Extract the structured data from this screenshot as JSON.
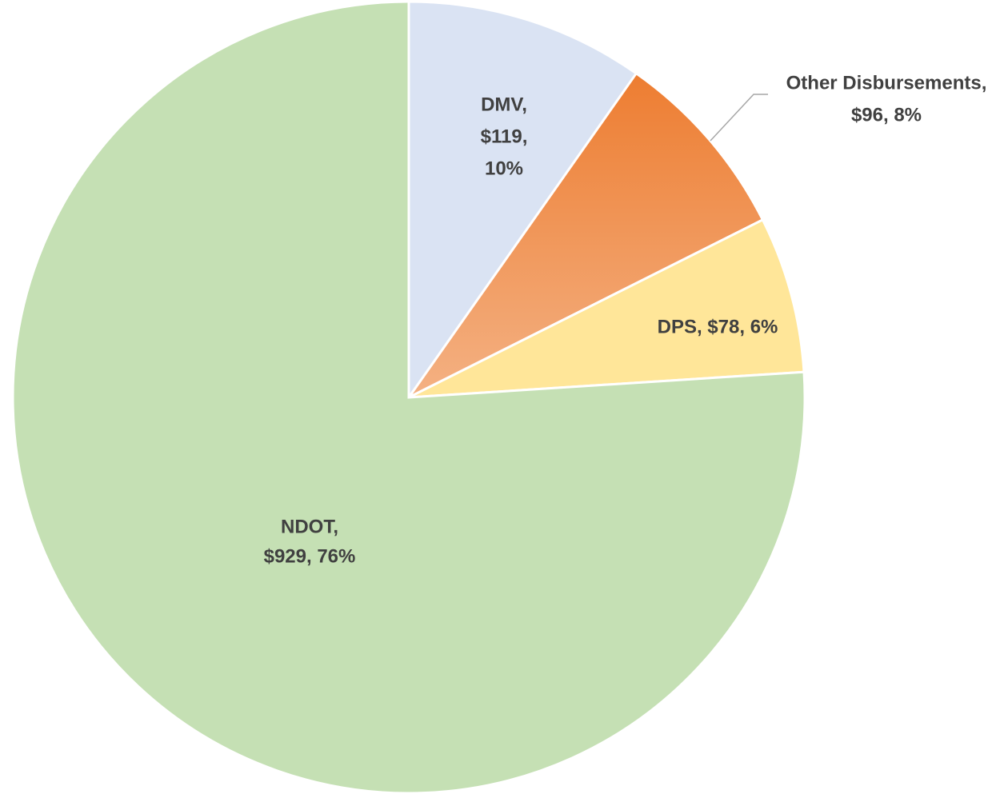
{
  "chart_data": {
    "type": "pie",
    "categories": [
      "DMV",
      "Other Disbursements",
      "DPS",
      "NDOT"
    ],
    "values": [
      119,
      96,
      78,
      929
    ],
    "value_labels": [
      [
        "DMV,",
        "$119,",
        "10%"
      ],
      [
        "Other Disbursements,",
        "$96, 8%"
      ],
      [
        "DPS, $78, 6%"
      ],
      [
        "NDOT,",
        "$929, 76%"
      ]
    ],
    "colors": [
      "#dae3f3",
      "#ed7d31",
      "#ffe699",
      "#c5e0b4"
    ]
  }
}
